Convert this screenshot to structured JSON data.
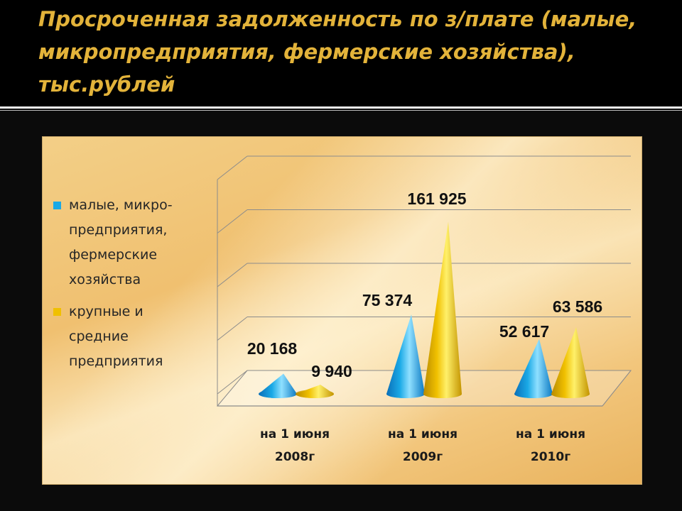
{
  "slide": {
    "title": "Просроченная задолженность по з/плате (малые, микропредприятия, фермерские хозяйства), тыс.рублей"
  },
  "colors": {
    "series_1": "#1aa9e6",
    "series_2": "#f0c000",
    "label_text": "#111111",
    "grid": "#8c8c8c"
  },
  "chart_data": {
    "type": "bar",
    "style": "3d-cone",
    "categories": [
      "на 1 июня 2008г",
      "на 1 июня 2009г",
      "на 1 июня 2010г"
    ],
    "category_lines": [
      [
        "на 1 июня",
        "2008г"
      ],
      [
        "на 1 июня",
        "2009г"
      ],
      [
        "на 1 июня",
        "2010г"
      ]
    ],
    "series": [
      {
        "name": "малые, микро-предприятия, фермерские хозяйства",
        "values": [
          20168,
          75374,
          52617
        ]
      },
      {
        "name": "крупные и средние предприятия",
        "values": [
          9940,
          161925,
          63586
        ]
      }
    ],
    "data_labels": [
      [
        "20 168",
        "75 374",
        "52 617"
      ],
      [
        "9 940",
        "161 925",
        "63 586"
      ]
    ],
    "legend": {
      "position": "left",
      "items": [
        {
          "lines": [
            "малые, микро-",
            "предприятия,",
            "фермерские",
            "хозяйства"
          ]
        },
        {
          "lines": [
            "крупные и",
            "средние",
            "предприятия"
          ]
        }
      ]
    },
    "ylim": [
      0,
      200000
    ],
    "grid": true,
    "y_ticks_visible": false
  }
}
